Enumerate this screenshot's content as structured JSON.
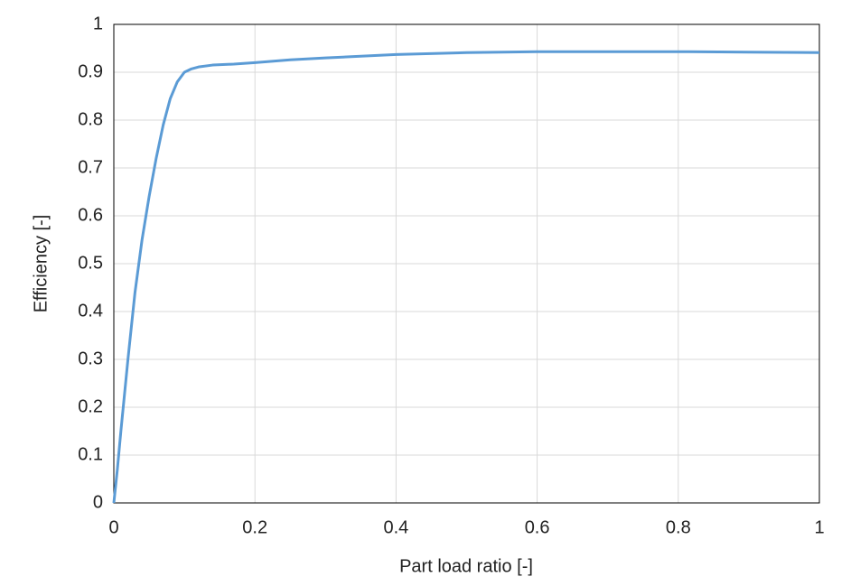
{
  "chart_data": {
    "type": "line",
    "x_label": "Part load ratio [-]",
    "y_label": "Efficiency [-]",
    "x": [
      0,
      0.005,
      0.01,
      0.02,
      0.03,
      0.04,
      0.05,
      0.06,
      0.07,
      0.08,
      0.09,
      0.1,
      0.11,
      0.12,
      0.14,
      0.17,
      0.2,
      0.25,
      0.3,
      0.4,
      0.5,
      0.6,
      0.7,
      0.8,
      0.9,
      1
    ],
    "series": [
      {
        "name": "Efficiency",
        "color": "#5b9bd5",
        "values": [
          0,
          0.07,
          0.15,
          0.3,
          0.44,
          0.55,
          0.64,
          0.72,
          0.79,
          0.845,
          0.88,
          0.9,
          0.907,
          0.911,
          0.915,
          0.917,
          0.92,
          0.926,
          0.93,
          0.937,
          0.941,
          0.943,
          0.943,
          0.943,
          0.942,
          0.941
        ]
      }
    ],
    "xlim": [
      0,
      1
    ],
    "ylim": [
      0,
      1
    ],
    "xticks": [
      0,
      0.2,
      0.4,
      0.6,
      0.8,
      1
    ],
    "yticks": [
      0,
      0.1,
      0.2,
      0.3,
      0.4,
      0.5,
      0.6,
      0.7,
      0.8,
      0.9,
      1
    ],
    "grid": true
  }
}
